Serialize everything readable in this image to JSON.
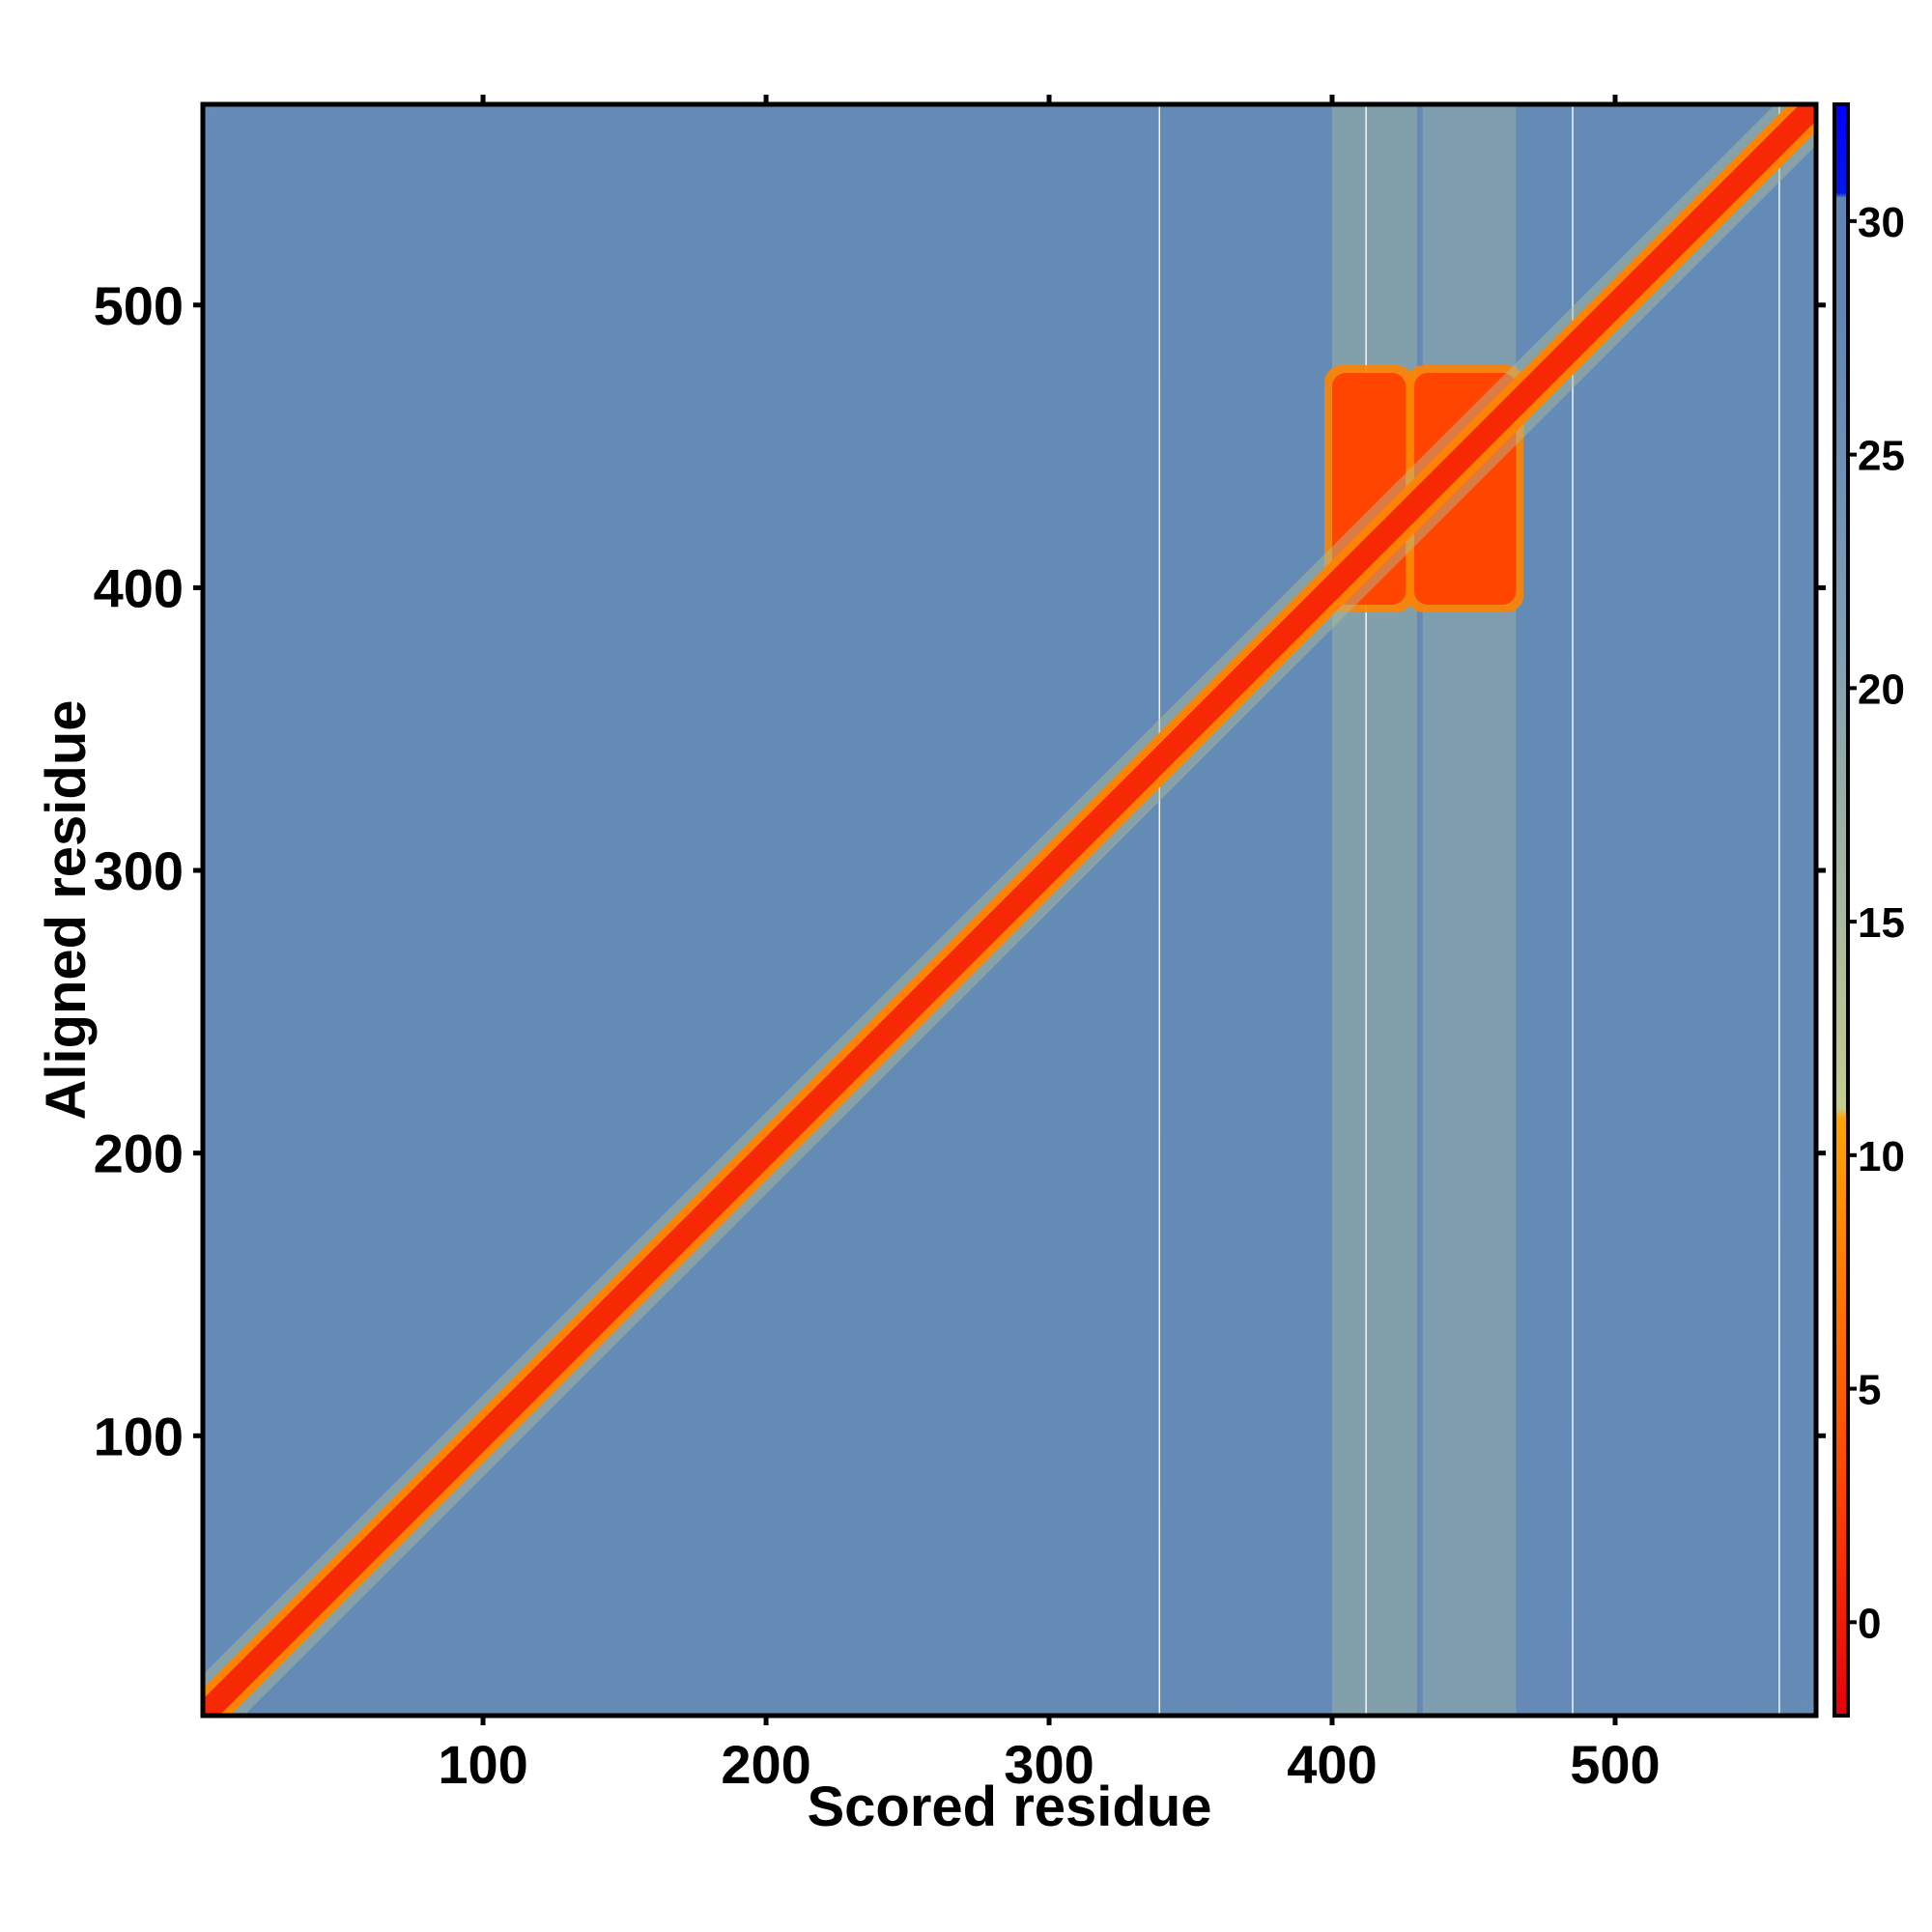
{
  "chart_data": {
    "type": "heatmap",
    "title": "",
    "xlabel": "Scored residue",
    "ylabel": "Aligned residue",
    "xlim": [
      1,
      571
    ],
    "ylim": [
      1,
      571
    ],
    "x_ticks": [
      100,
      200,
      300,
      400,
      500
    ],
    "y_ticks": [
      100,
      200,
      300,
      400,
      500
    ],
    "colorbar": {
      "range": [
        -2,
        32.5
      ],
      "ticks": [
        0,
        5,
        10,
        15,
        20,
        25,
        30
      ],
      "stops": [
        {
          "value": -2,
          "color": "#e8000b"
        },
        {
          "value": 3,
          "color": "#ff4500"
        },
        {
          "value": 10.8,
          "color": "#ffa500"
        },
        {
          "value": 11,
          "color": "#c6cc8c"
        },
        {
          "value": 21,
          "color": "#7f9fb4"
        },
        {
          "value": 28,
          "color": "#5f86b6"
        },
        {
          "value": 30.5,
          "color": "#5f86b6"
        },
        {
          "value": 30.6,
          "color": "#0019e6"
        },
        {
          "value": 32.5,
          "color": "#0000ff"
        }
      ]
    },
    "background_value": 27,
    "diagonal": {
      "start": 1,
      "end": 571,
      "value": 1
    },
    "red_blocks": [
      {
        "x": [
          400,
          426
        ],
        "y": [
          394,
          476
        ],
        "value": 3
      },
      {
        "x": [
          429,
          465
        ],
        "y": [
          394,
          476
        ],
        "value": 3
      }
    ],
    "light_bands": [
      {
        "x": [
          400,
          430
        ],
        "value": 17
      },
      {
        "x": [
          432,
          465
        ],
        "value": 18
      }
    ],
    "gap_columns": [
      339,
      412,
      485,
      558
    ],
    "grid": false
  }
}
